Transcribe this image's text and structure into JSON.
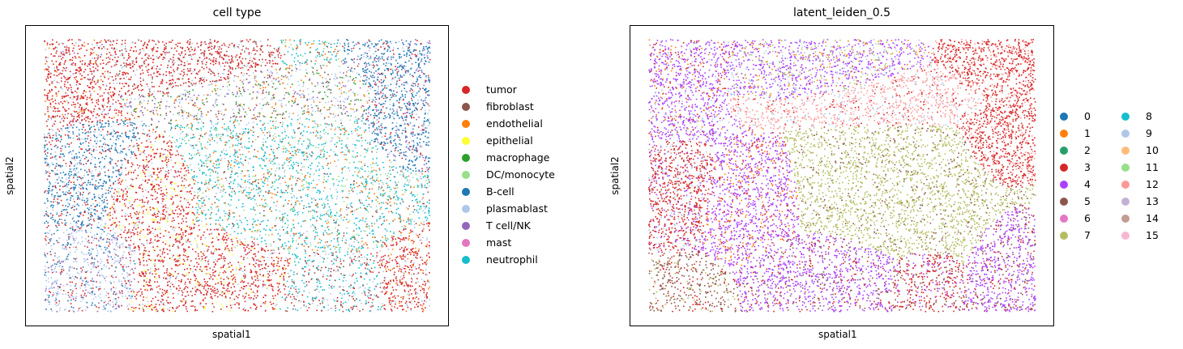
{
  "chart_data": [
    {
      "type": "scatter",
      "title": "cell type",
      "xlabel": "spatial1",
      "ylabel": "spatial2",
      "legend_position": "right",
      "grid": false,
      "series": [
        {
          "name": "tumor",
          "color": "#d62728"
        },
        {
          "name": "fibroblast",
          "color": "#8c564b"
        },
        {
          "name": "endothelial",
          "color": "#ff7f0e"
        },
        {
          "name": "epithelial",
          "color": "#ffff33"
        },
        {
          "name": "macrophage",
          "color": "#2ca02c"
        },
        {
          "name": "DC/monocyte",
          "color": "#98df8a"
        },
        {
          "name": "B-cell",
          "color": "#1f77b4"
        },
        {
          "name": "plasmablast",
          "color": "#aec7e8"
        },
        {
          "name": "T cell/NK",
          "color": "#9467bd"
        },
        {
          "name": "mast",
          "color": "#e377c2"
        },
        {
          "name": "neutrophil",
          "color": "#17becf"
        }
      ]
    },
    {
      "type": "scatter",
      "title": "latent_leiden_0.5",
      "xlabel": "spatial1",
      "ylabel": "spatial2",
      "legend_position": "right",
      "grid": false,
      "series": [
        {
          "name": "0",
          "color": "#1f77b4"
        },
        {
          "name": "1",
          "color": "#ff7f0e"
        },
        {
          "name": "2",
          "color": "#279e68"
        },
        {
          "name": "3",
          "color": "#d62728"
        },
        {
          "name": "4",
          "color": "#aa40fc"
        },
        {
          "name": "5",
          "color": "#8c564b"
        },
        {
          "name": "6",
          "color": "#e377c2"
        },
        {
          "name": "7",
          "color": "#b5bd61"
        },
        {
          "name": "8",
          "color": "#17becf"
        },
        {
          "name": "9",
          "color": "#aec7e8"
        },
        {
          "name": "10",
          "color": "#ffbb78"
        },
        {
          "name": "11",
          "color": "#98df8a"
        },
        {
          "name": "12",
          "color": "#ff9896"
        },
        {
          "name": "13",
          "color": "#c5b0d5"
        },
        {
          "name": "14",
          "color": "#c49c94"
        },
        {
          "name": "15",
          "color": "#f7b6d2"
        }
      ]
    }
  ]
}
